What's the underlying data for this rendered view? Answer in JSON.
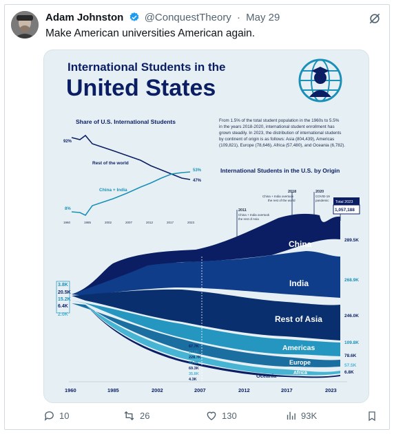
{
  "tweet": {
    "author_name": "Adam Johnston",
    "handle": "@ConquestTheory",
    "separator": "·",
    "date": "May 29",
    "text": "Make American universities American again."
  },
  "infographic": {
    "title_line1": "International Students in the",
    "title_line2": "United States",
    "intro_text": [
      "From 1.5% of the total student population in the 1960s to 5.5%",
      "in the years 2018-2020, international student enrollment has",
      "grown steadily. In 2023, the distribution of international students",
      "by continent of origin is as follows: Asia (804,439), Americas",
      "(109,821), Europe (78,646), Africa (57,480), and Oceania (6,782)."
    ],
    "share_chart": {
      "title": "Share of U.S. International Students",
      "rest_label": "Rest of the world",
      "china_india_label": "China + India",
      "start_rest": "92%",
      "start_ci": "8%",
      "end_ci": "53%",
      "end_rest": "47%",
      "x_ticks": [
        "1960",
        "1985",
        "2002",
        "2007",
        "2012",
        "2017",
        "2023"
      ]
    },
    "origin_chart": {
      "title": "International Students in the U.S. by Origin",
      "annotations": {
        "a2011_year": "2011",
        "a2011_text_1": "China + India overtook",
        "a2011_text_2": "the rest of Asia",
        "a2018_year": "2018",
        "a2018_text_1": "China + India overtook",
        "a2018_text_2": "the rest of the world",
        "a2020_year": "2020",
        "a2020_text_1": "COVID-19",
        "a2020_text_2": "pandemic",
        "total_label": "Total 2023",
        "total_value": "1,057,188"
      },
      "bands": [
        {
          "name": "China",
          "start": "3.8K",
          "end": "289.5K",
          "color": "#0b1e63"
        },
        {
          "name": "India",
          "start": "20.5K",
          "end": "268.9K",
          "color": "#0f3d8a"
        },
        {
          "name": "Rest of Asia",
          "start": "15.2K",
          "end": "246.0K",
          "color": "#0a2f6f"
        },
        {
          "name": "Americas",
          "start": "6.4K",
          "end": "109.8K",
          "color": "#2496bf"
        },
        {
          "name": "Europe",
          "start": "2.0K",
          "end": "78.6K",
          "color": "#1b6fa0"
        },
        {
          "name": "Africa",
          "start": "",
          "end": "57.5K",
          "color": "#46b4d2"
        },
        {
          "name": "Oceania",
          "start": "",
          "end": "6.8K",
          "color": "#0b1e63"
        }
      ],
      "values_2007": [
        "67.7K",
        "93.0K",
        "228.7K",
        "93.3K",
        "69.3K",
        "35.8K",
        "4.3K"
      ],
      "x_ticks": [
        "1960",
        "1985",
        "2002",
        "2007",
        "2012",
        "2017",
        "2023"
      ]
    }
  },
  "actions": {
    "replies": "10",
    "reposts": "26",
    "likes": "130",
    "views": "93K"
  },
  "colors": {
    "navy": "#0b1e63",
    "teal": "#2496bf",
    "background": "#e6f0f4",
    "muted": "#536471"
  }
}
